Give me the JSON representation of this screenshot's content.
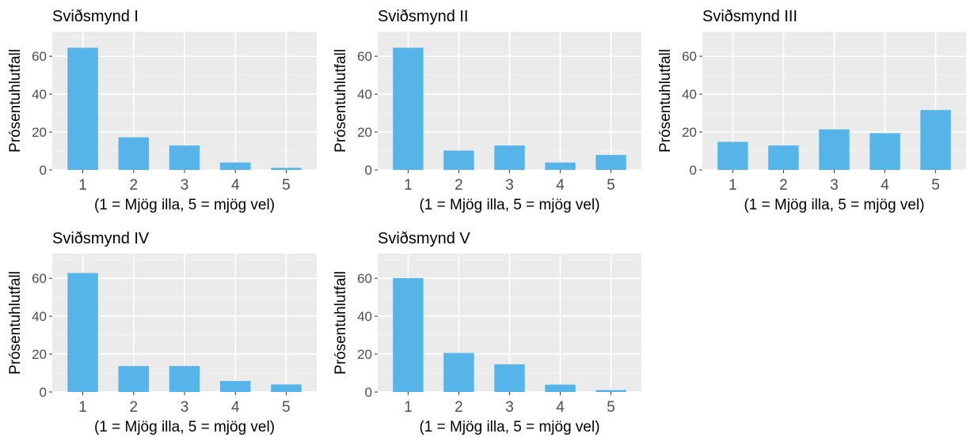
{
  "chart_data": [
    {
      "type": "bar",
      "title": "Sviðsmynd I",
      "xlabel": "(1 = Mjög illa, 5 = mjög vel)",
      "ylabel": "Prósentuhlutfall",
      "categories": [
        "1",
        "2",
        "3",
        "4",
        "5"
      ],
      "values": [
        64.5,
        17.2,
        12.9,
        3.9,
        1.1
      ],
      "ylim": [
        0,
        73
      ],
      "yticks": [
        "0",
        "20",
        "40",
        "60"
      ],
      "grid": true
    },
    {
      "type": "bar",
      "title": "Sviðsmynd II",
      "xlabel": "(1 = Mjög illa, 5 = mjög vel)",
      "ylabel": "Prósentuhlutfall",
      "categories": [
        "1",
        "2",
        "3",
        "4",
        "5"
      ],
      "values": [
        64.5,
        10.2,
        12.9,
        3.9,
        7.9
      ],
      "ylim": [
        0,
        73
      ],
      "yticks": [
        "0",
        "20",
        "40",
        "60"
      ],
      "grid": true
    },
    {
      "type": "bar",
      "title": "Sviðsmynd III",
      "xlabel": "(1 = Mjög illa, 5 = mjög vel)",
      "ylabel": "Prósentuhlutfall",
      "categories": [
        "1",
        "2",
        "3",
        "4",
        "5"
      ],
      "values": [
        14.8,
        12.9,
        21.4,
        19.4,
        31.6
      ],
      "ylim": [
        0,
        73
      ],
      "yticks": [
        "0",
        "20",
        "40",
        "60"
      ],
      "grid": true
    },
    {
      "type": "bar",
      "title": "Sviðsmynd IV",
      "xlabel": "(1 = Mjög illa, 5 = mjög vel)",
      "ylabel": "Prósentuhlutfall",
      "categories": [
        "1",
        "2",
        "3",
        "4",
        "5"
      ],
      "values": [
        62.8,
        13.7,
        13.7,
        5.8,
        4.0
      ],
      "ylim": [
        0,
        73
      ],
      "yticks": [
        "0",
        "20",
        "40",
        "60"
      ],
      "grid": true
    },
    {
      "type": "bar",
      "title": "Sviðsmynd V",
      "xlabel": "(1 = Mjög illa, 5 = mjög vel)",
      "ylabel": "Prósentuhlutfall",
      "categories": [
        "1",
        "2",
        "3",
        "4",
        "5"
      ],
      "values": [
        60.1,
        20.6,
        14.6,
        3.9,
        1.0
      ],
      "ylim": [
        0,
        73
      ],
      "yticks": [
        "0",
        "20",
        "40",
        "60"
      ],
      "grid": true
    }
  ],
  "colors": {
    "bar": "#56b4e9",
    "panel_background": "#ebebeb",
    "grid_major": "#ffffff",
    "grid_minor": "#f5f5f5",
    "tick_text": "#4d4d4d",
    "tick_mark": "#333333"
  }
}
